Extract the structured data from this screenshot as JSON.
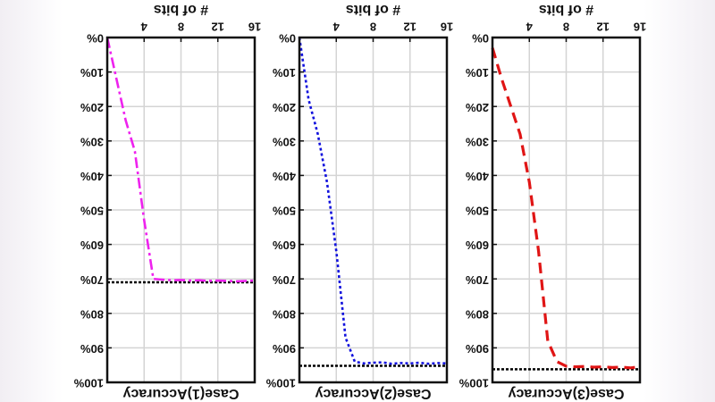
{
  "figure": {
    "background": "#ffffff",
    "note": ""
  },
  "chart_data": [
    {
      "type": "line",
      "title": "",
      "xlabel": "# of bits",
      "ylabel": "",
      "caption": "Case(1)Accuracy",
      "xlim": [
        0,
        16
      ],
      "ylim": [
        0,
        100
      ],
      "x_ticks": [
        4,
        8,
        12,
        16
      ],
      "x_tick_labels": [
        "4",
        "8",
        "12",
        "16"
      ],
      "y_ticks": [
        0,
        10,
        20,
        30,
        40,
        50,
        60,
        70,
        80,
        90,
        100
      ],
      "y_tick_labels": [
        "0%",
        "10%",
        "20%",
        "30%",
        "40%",
        "50%",
        "60%",
        "70%",
        "80%",
        "90%",
        "100%"
      ],
      "grid": true,
      "orientation": "rotated 180 degrees (upside down)",
      "series": [
        {
          "color": "#ee22ee",
          "style": "dash-dot",
          "x": [
            0,
            1,
            2,
            3,
            4,
            5,
            6,
            7,
            8,
            9,
            10,
            11,
            12,
            13,
            14,
            15,
            16
          ],
          "y": [
            0,
            12,
            24,
            33,
            53,
            70,
            70.2,
            70.4,
            70.3,
            70.5,
            70.4,
            70.6,
            70.5,
            70.6,
            70.7,
            70.6,
            70.5
          ]
        }
      ],
      "reference_line": {
        "y": 71,
        "color": "#000000",
        "style": "dotted"
      }
    },
    {
      "type": "line",
      "title": "",
      "xlabel": "# of bits",
      "ylabel": "",
      "caption": "Case(2)Accuracy",
      "xlim": [
        0,
        16
      ],
      "ylim": [
        0,
        100
      ],
      "x_ticks": [
        4,
        8,
        12,
        16
      ],
      "x_tick_labels": [
        "4",
        "8",
        "12",
        "16"
      ],
      "y_ticks": [
        0,
        10,
        20,
        30,
        40,
        50,
        60,
        70,
        80,
        90,
        100
      ],
      "y_tick_labels": [
        "0%",
        "10%",
        "20%",
        "30%",
        "40%",
        "50%",
        "60%",
        "70%",
        "80%",
        "90%",
        "100%"
      ],
      "grid": true,
      "orientation": "rotated 180 degrees (upside down)",
      "series": [
        {
          "color": "#1111dd",
          "style": "dotted",
          "x": [
            0,
            1,
            2,
            3,
            4,
            5,
            6,
            7,
            8,
            9,
            10,
            11,
            12,
            13,
            14,
            15,
            16
          ],
          "y": [
            0,
            18,
            28,
            42,
            62,
            87,
            94,
            94.5,
            94.3,
            94.2,
            94.6,
            94.4,
            94.5,
            94.3,
            94.6,
            94.4,
            94.5
          ]
        }
      ],
      "reference_line": {
        "y": 95.2,
        "color": "#000000",
        "style": "dotted"
      }
    },
    {
      "type": "line",
      "title": "",
      "xlabel": "# of bits",
      "ylabel": "",
      "caption": "Case(3)Accuracy",
      "xlim": [
        0,
        16
      ],
      "ylim": [
        0,
        100
      ],
      "x_ticks": [
        4,
        8,
        12,
        16
      ],
      "x_tick_labels": [
        "4",
        "8",
        "12",
        "16"
      ],
      "y_ticks": [
        0,
        10,
        20,
        30,
        40,
        50,
        60,
        70,
        80,
        90,
        100
      ],
      "y_tick_labels": [
        "0%",
        "10%",
        "20%",
        "30%",
        "40%",
        "50%",
        "60%",
        "70%",
        "80%",
        "90%",
        "100%"
      ],
      "grid": true,
      "orientation": "rotated 180 degrees (upside down)",
      "series": [
        {
          "color": "#e01515",
          "style": "dashed",
          "x": [
            0,
            1,
            2,
            3,
            4,
            5,
            6,
            7,
            8,
            9,
            10,
            11,
            12,
            13,
            14,
            15,
            16
          ],
          "y": [
            3,
            12,
            20,
            28,
            42,
            62,
            88,
            94,
            95.3,
            95.5,
            95.4,
            95.6,
            95.5,
            95.7,
            95.6,
            95.8,
            95.5
          ]
        }
      ],
      "reference_line": {
        "y": 96.2,
        "color": "#000000",
        "style": "dotted"
      }
    }
  ]
}
